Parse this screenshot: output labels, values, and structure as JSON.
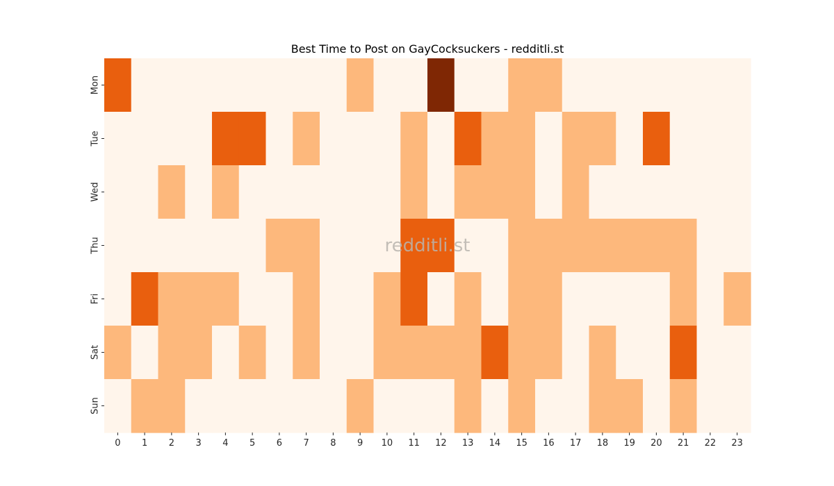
{
  "chart_data": {
    "type": "heatmap",
    "title": "Best Time to Post on GayCocksuckers - redditli.st",
    "watermark": "redditli.st",
    "x_categories": [
      "0",
      "1",
      "2",
      "3",
      "4",
      "5",
      "6",
      "7",
      "8",
      "9",
      "10",
      "11",
      "12",
      "13",
      "14",
      "15",
      "16",
      "17",
      "18",
      "19",
      "20",
      "21",
      "22",
      "23"
    ],
    "y_categories": [
      "Mon",
      "Tue",
      "Wed",
      "Thu",
      "Fri",
      "Sat",
      "Sun"
    ],
    "values": [
      [
        2,
        0,
        0,
        0,
        0,
        0,
        0,
        0,
        0,
        1,
        0,
        0,
        3,
        0,
        0,
        1,
        1,
        0,
        0,
        0,
        0,
        0,
        0,
        0
      ],
      [
        0,
        0,
        0,
        0,
        2,
        2,
        0,
        1,
        0,
        0,
        0,
        1,
        0,
        2,
        1,
        1,
        0,
        1,
        1,
        0,
        2,
        0,
        0,
        0
      ],
      [
        0,
        0,
        1,
        0,
        1,
        0,
        0,
        0,
        0,
        0,
        0,
        1,
        0,
        1,
        1,
        1,
        0,
        1,
        0,
        0,
        0,
        0,
        0,
        0
      ],
      [
        0,
        0,
        0,
        0,
        0,
        0,
        1,
        1,
        0,
        0,
        0,
        2,
        2,
        0,
        0,
        1,
        1,
        1,
        1,
        1,
        1,
        1,
        0,
        0
      ],
      [
        0,
        2,
        1,
        1,
        1,
        0,
        0,
        1,
        0,
        0,
        1,
        2,
        0,
        1,
        0,
        1,
        1,
        0,
        0,
        0,
        0,
        1,
        0,
        1
      ],
      [
        1,
        0,
        1,
        1,
        0,
        1,
        0,
        1,
        0,
        0,
        1,
        1,
        1,
        1,
        2,
        1,
        1,
        0,
        1,
        0,
        0,
        2,
        0,
        0
      ],
      [
        0,
        1,
        1,
        0,
        0,
        0,
        0,
        0,
        0,
        1,
        0,
        0,
        0,
        1,
        0,
        1,
        0,
        0,
        1,
        1,
        0,
        1,
        0,
        0
      ]
    ],
    "value_range": [
      0,
      3
    ],
    "colormap": [
      "#fff5eb",
      "#fdb87c",
      "#e95f0e",
      "#7f2704"
    ],
    "xlabel": "",
    "ylabel": "",
    "grid": false,
    "colorbar": false
  }
}
